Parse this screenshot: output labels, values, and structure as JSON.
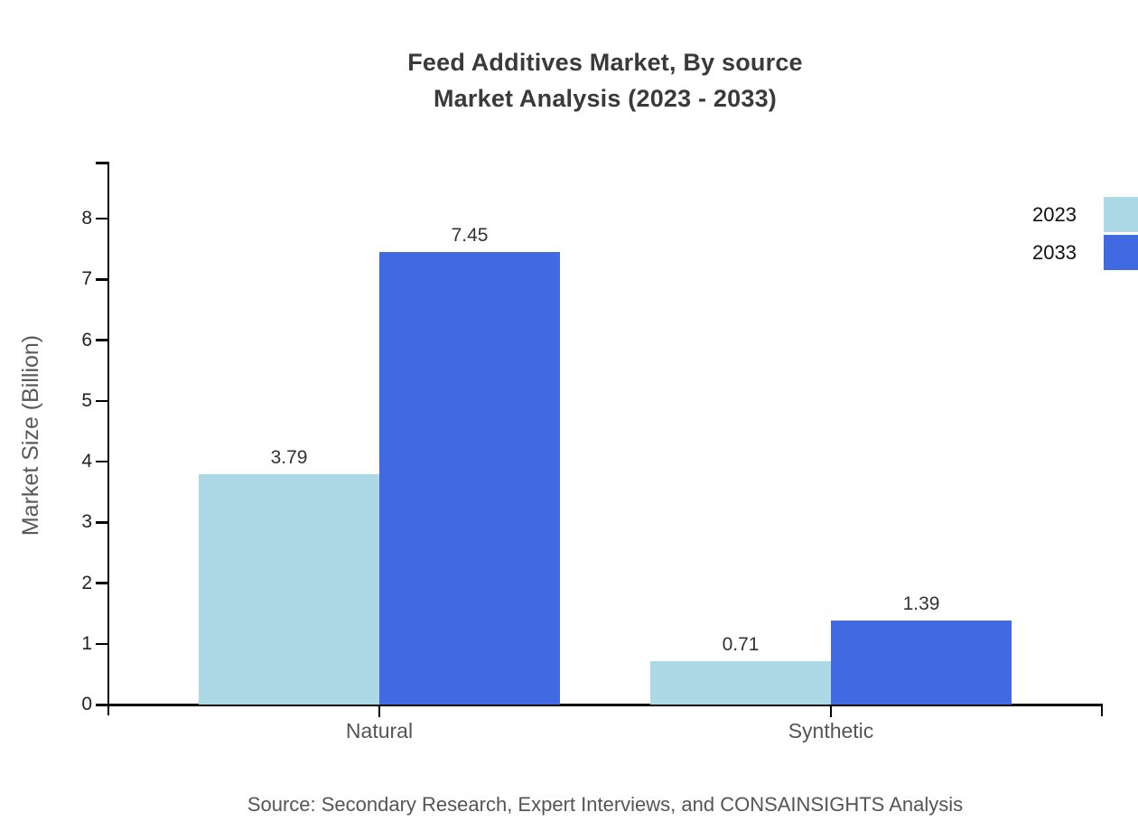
{
  "title": {
    "line1": "Feed Additives Market, By source",
    "line2": "Market Analysis (2023 - 2033)"
  },
  "y_axis": {
    "label": "Market Size (Billion)",
    "ticks": [
      "0",
      "1",
      "2",
      "3",
      "4",
      "5",
      "6",
      "7",
      "8"
    ]
  },
  "legend": {
    "items": [
      {
        "label": "2023",
        "color": "#ADD8E6"
      },
      {
        "label": "2033",
        "color": "#4169E1"
      }
    ]
  },
  "source_note": "Source: Secondary Research, Expert Interviews, and CONSAINSIGHTS Analysis",
  "colors": {
    "axis": "#000000",
    "title": "#3a3a3a",
    "tick_label": "#222222",
    "category_label": "#555555",
    "value_label": "#333333",
    "source": "#555555",
    "series_2023": "#ADD8E6",
    "series_2033": "#4169E1"
  },
  "chart_data": {
    "type": "bar",
    "categories": [
      "Natural",
      "Synthetic"
    ],
    "series": [
      {
        "name": "2023",
        "color": "#ADD8E6",
        "values": [
          3.79,
          0.71
        ]
      },
      {
        "name": "2033",
        "color": "#4169E1",
        "values": [
          7.45,
          1.39
        ]
      }
    ],
    "title": "Feed Additives Market, By source — Market Analysis (2023 - 2033)",
    "xlabel": "",
    "ylabel": "Market Size (Billion)",
    "ylim": [
      0,
      8.9
    ],
    "yticks": [
      0,
      1,
      2,
      3,
      4,
      5,
      6,
      7,
      8
    ],
    "grid": false,
    "legend_position": "top-right",
    "value_labels_shown": true
  }
}
